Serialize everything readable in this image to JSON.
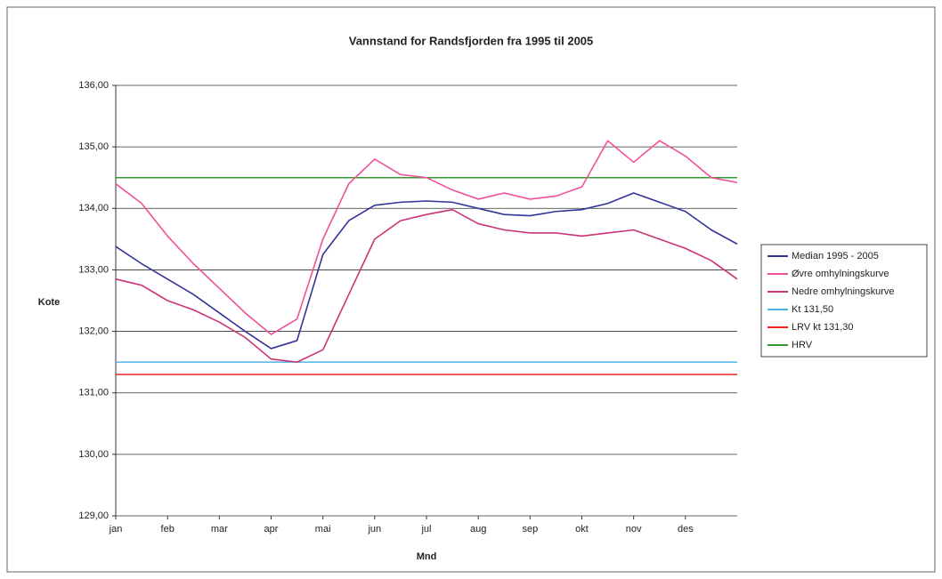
{
  "chart_data": {
    "type": "line",
    "title": "Vannstand for Randsfjorden fra 1995 til 2005",
    "ylabel": "Kote",
    "xlabel": "Mnd",
    "categories": [
      "jan",
      null,
      "feb",
      null,
      "mar",
      null,
      "apr",
      null,
      "mai",
      null,
      "jun",
      null,
      "jul",
      null,
      "aug",
      null,
      "sep",
      null,
      "okt",
      null,
      "nov",
      null,
      "des",
      null,
      null
    ],
    "series": [
      {
        "name": "Median 1995 - 2005",
        "color": "#333399",
        "values": [
          133.38,
          133.1,
          132.85,
          132.6,
          132.3,
          132.0,
          131.72,
          131.85,
          133.25,
          133.8,
          134.05,
          134.1,
          134.12,
          134.1,
          134.0,
          133.9,
          133.88,
          133.95,
          133.98,
          134.08,
          134.25,
          134.1,
          133.95,
          133.65,
          133.42
        ]
      },
      {
        "name": "Øvre omhylningskurve",
        "color": "#f0509a",
        "values": [
          134.4,
          134.08,
          133.55,
          133.1,
          132.7,
          132.3,
          131.95,
          132.2,
          133.5,
          134.4,
          134.8,
          134.55,
          134.5,
          134.3,
          134.15,
          134.25,
          134.15,
          134.2,
          134.35,
          135.1,
          134.75,
          135.1,
          134.85,
          134.5,
          134.42
        ]
      },
      {
        "name": "Nedre omhylningskurve",
        "color": "#cc3377",
        "values": [
          132.85,
          132.75,
          132.5,
          132.35,
          132.15,
          131.9,
          131.55,
          131.5,
          131.7,
          132.6,
          133.5,
          133.8,
          133.9,
          133.98,
          133.75,
          133.65,
          133.6,
          133.6,
          133.55,
          133.6,
          133.65,
          133.5,
          133.35,
          133.15,
          132.85
        ]
      }
    ],
    "reference_lines": [
      {
        "name": "Kt 131,50",
        "color": "#4fb3e0",
        "value": 131.5
      },
      {
        "name": "LRV kt 131,30",
        "color": "#ee2222",
        "value": 131.3
      },
      {
        "name": "HRV",
        "color": "#339933",
        "value": 134.5
      }
    ],
    "ylim": [
      129,
      136
    ],
    "yticks": [
      {
        "value": 129,
        "label": "129,00"
      },
      {
        "value": 130,
        "label": "130,00"
      },
      {
        "value": 131,
        "label": "131,00"
      },
      {
        "value": 132,
        "label": "132,00"
      },
      {
        "value": 133,
        "label": "133,00"
      },
      {
        "value": 134,
        "label": "134,00"
      },
      {
        "value": 135,
        "label": "135,00"
      },
      {
        "value": 136,
        "label": "136,00"
      }
    ],
    "grid": true,
    "legend": "right"
  }
}
